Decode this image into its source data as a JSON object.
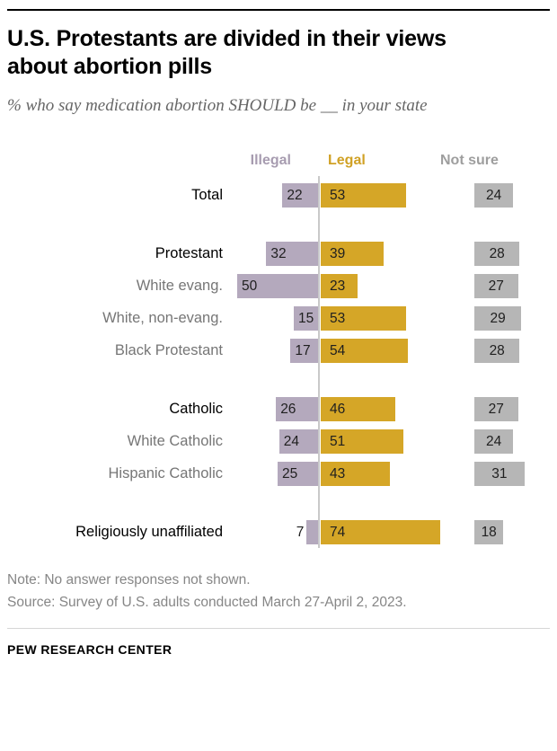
{
  "page": {
    "title": "U.S. Protestants are divided in their views about abortion pills",
    "subtitle": "% who say medication abortion SHOULD be __ in your state",
    "note": "Note: No answer responses not shown.",
    "source": "Source: Survey of U.S. adults conducted March 27-April 2, 2023.",
    "footer": "PEW RESEARCH CENTER"
  },
  "chart_data": {
    "type": "bar",
    "orientation": "horizontal-diverging",
    "unit": "%",
    "title": "U.S. Protestants are divided in their views about abortion pills",
    "subtitle": "% who say medication abortion SHOULD be __ in your state",
    "column_headers": [
      "Illegal",
      "Legal",
      "Not sure"
    ],
    "colors": {
      "illegal": "#b4a9bd",
      "legal": "#d5a627",
      "not_sure": "#b6b6b6",
      "illegal_header": "#a79cb0",
      "legal_header": "#d0a125",
      "not_sure_header": "#9e9e9e"
    },
    "rows": [
      {
        "label": "Total",
        "emphasis": true,
        "gap_before": false,
        "illegal": 22,
        "legal": 53,
        "not_sure": 24
      },
      {
        "label": "Protestant",
        "emphasis": true,
        "gap_before": true,
        "illegal": 32,
        "legal": 39,
        "not_sure": 28
      },
      {
        "label": "White evang.",
        "emphasis": false,
        "gap_before": false,
        "illegal": 50,
        "legal": 23,
        "not_sure": 27
      },
      {
        "label": "White, non-evang.",
        "emphasis": false,
        "gap_before": false,
        "illegal": 15,
        "legal": 53,
        "not_sure": 29
      },
      {
        "label": "Black Protestant",
        "emphasis": false,
        "gap_before": false,
        "illegal": 17,
        "legal": 54,
        "not_sure": 28
      },
      {
        "label": "Catholic",
        "emphasis": true,
        "gap_before": true,
        "illegal": 26,
        "legal": 46,
        "not_sure": 27
      },
      {
        "label": "White Catholic",
        "emphasis": false,
        "gap_before": false,
        "illegal": 24,
        "legal": 51,
        "not_sure": 24
      },
      {
        "label": "Hispanic Catholic",
        "emphasis": false,
        "gap_before": false,
        "illegal": 25,
        "legal": 43,
        "not_sure": 31
      },
      {
        "label": "Religiously unaffiliated",
        "emphasis": true,
        "gap_before": true,
        "illegal": 7,
        "legal": 74,
        "not_sure": 18
      }
    ]
  }
}
